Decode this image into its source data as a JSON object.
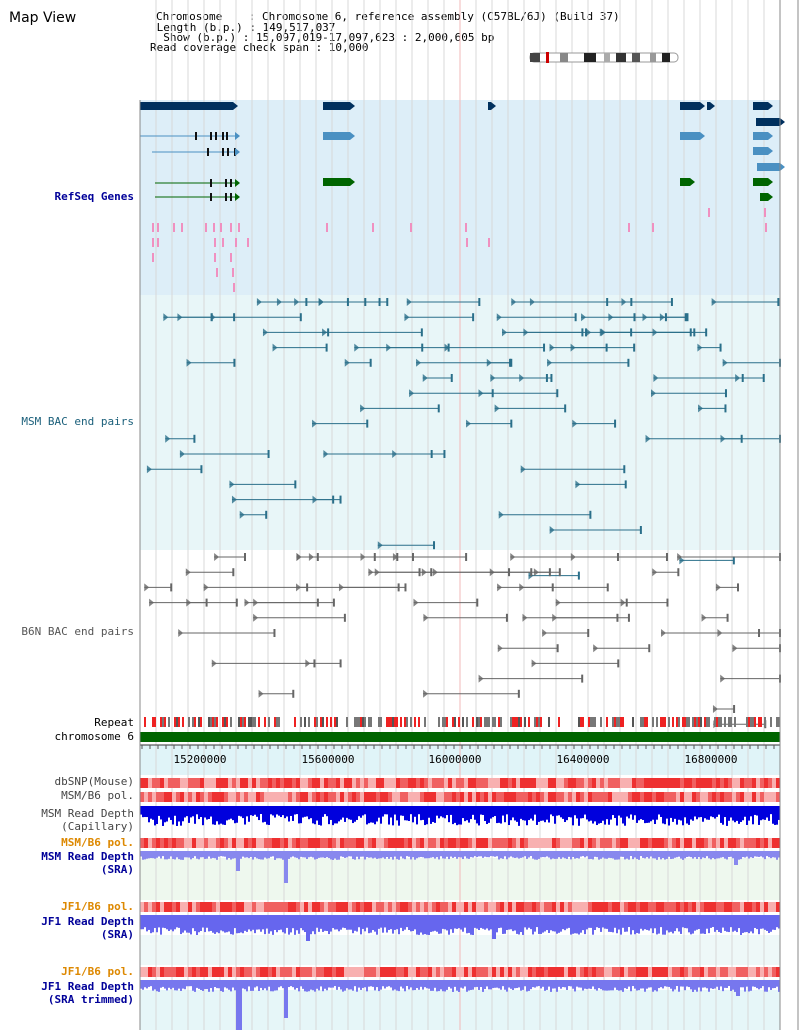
{
  "header": {
    "title": "Map View",
    "info_lines": [
      "Chromosome    : Chromosome 6, reference assembly (C57BL/6J) (Build 37)",
      " Length (b.p.) : 149,517,037",
      "  Show (b.p.) : 15,097,019-17,097,623 : 2,000,605 bp",
      "Read coverage check span : 10,000"
    ]
  },
  "tracks": {
    "refseq": "RefSeq Genes",
    "msm_bac": "MSM BAC end pairs",
    "b6n_bac": "B6N BAC end pairs",
    "repeat": "Repeat",
    "chromosome": "chromosome 6",
    "dbsnp": "dbSNP(Mouse)",
    "msm_b6_pol_1": "MSM/B6 pol.",
    "msm_depth_cap_1": "MSM Read Depth",
    "msm_depth_cap_2": "(Capillary)",
    "msm_b6_pol_2": "MSM/B6 pol.",
    "msm_depth_sra_1": "MSM Read Depth",
    "msm_depth_sra_2": "(SRA)",
    "jf1_b6_pol_1": "JF1/B6 pol.",
    "jf1_depth_sra_1": "JF1 Read Depth",
    "jf1_depth_sra_2": "(SRA)",
    "jf1_b6_pol_2": "JF1/B6 pol.",
    "jf1_depth_trim_1": "JF1 Read Depth",
    "jf1_depth_trim_2": "(SRA trimmed)"
  },
  "axis": {
    "ticks": [
      "15200000",
      "15600000",
      "16000000",
      "16400000",
      "16800000"
    ]
  },
  "colors": {
    "refseq_dark": "#00305e",
    "refseq_light": "#4a90c2",
    "refseq_green": "#006400",
    "msm_bac": "#2a6f8a",
    "b6n_bac": "#666666",
    "pol": "#ee4444",
    "depth_blue": "#0000dd",
    "depth_violet": "#6666ee",
    "orange_label": "#dd8800",
    "blue_label": "#000099",
    "green_bar": "#006400"
  }
}
